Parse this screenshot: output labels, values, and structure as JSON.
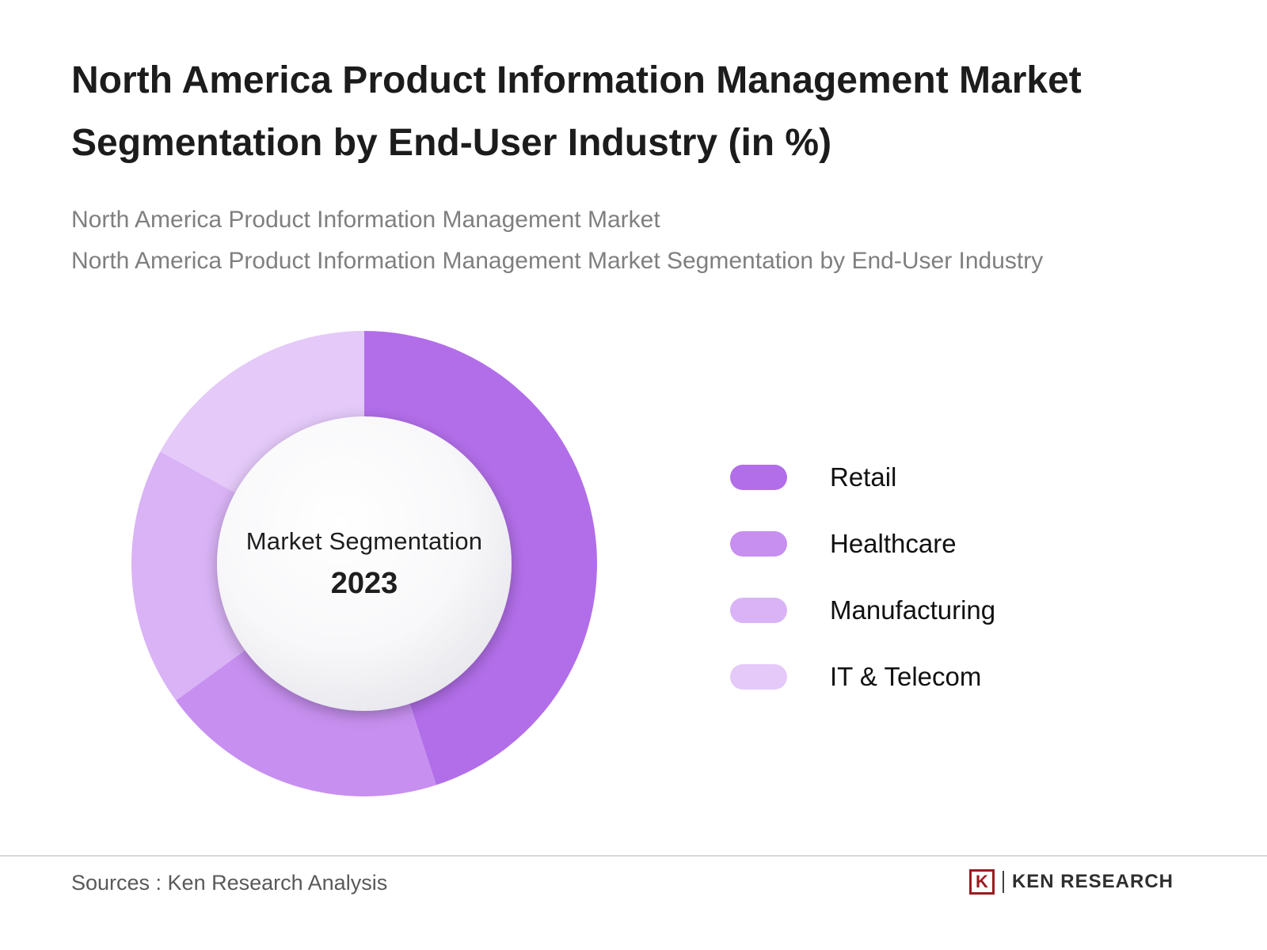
{
  "header": {
    "title": "North America Product Information Management Market Segmentation by End-User Industry (in %)",
    "subtitle_line1": "North America Product Information Management Market",
    "subtitle_line2": "North America Product Information Management Market Segmentation by End-User Industry"
  },
  "chart_data": {
    "type": "pie",
    "donut": true,
    "title": "North America Product Information Management Market Segmentation by End-User Industry (in %)",
    "center_label": "Market Segmentation",
    "center_sublabel": "2023",
    "categories": [
      "Retail",
      "Healthcare",
      "Manufacturing",
      "IT & Telecom"
    ],
    "values": [
      45,
      20,
      18,
      17
    ],
    "colors": [
      "#b26ee9",
      "#c78ff0",
      "#d9b3f6",
      "#e4c9f9"
    ],
    "legend_position": "right",
    "start_angle_deg": 0,
    "direction": "clockwise",
    "data_labels": false
  },
  "footer": {
    "source_text": "Sources : Ken Research Analysis",
    "logo": {
      "mark": "K",
      "name": "KEN RESEARCH"
    }
  }
}
